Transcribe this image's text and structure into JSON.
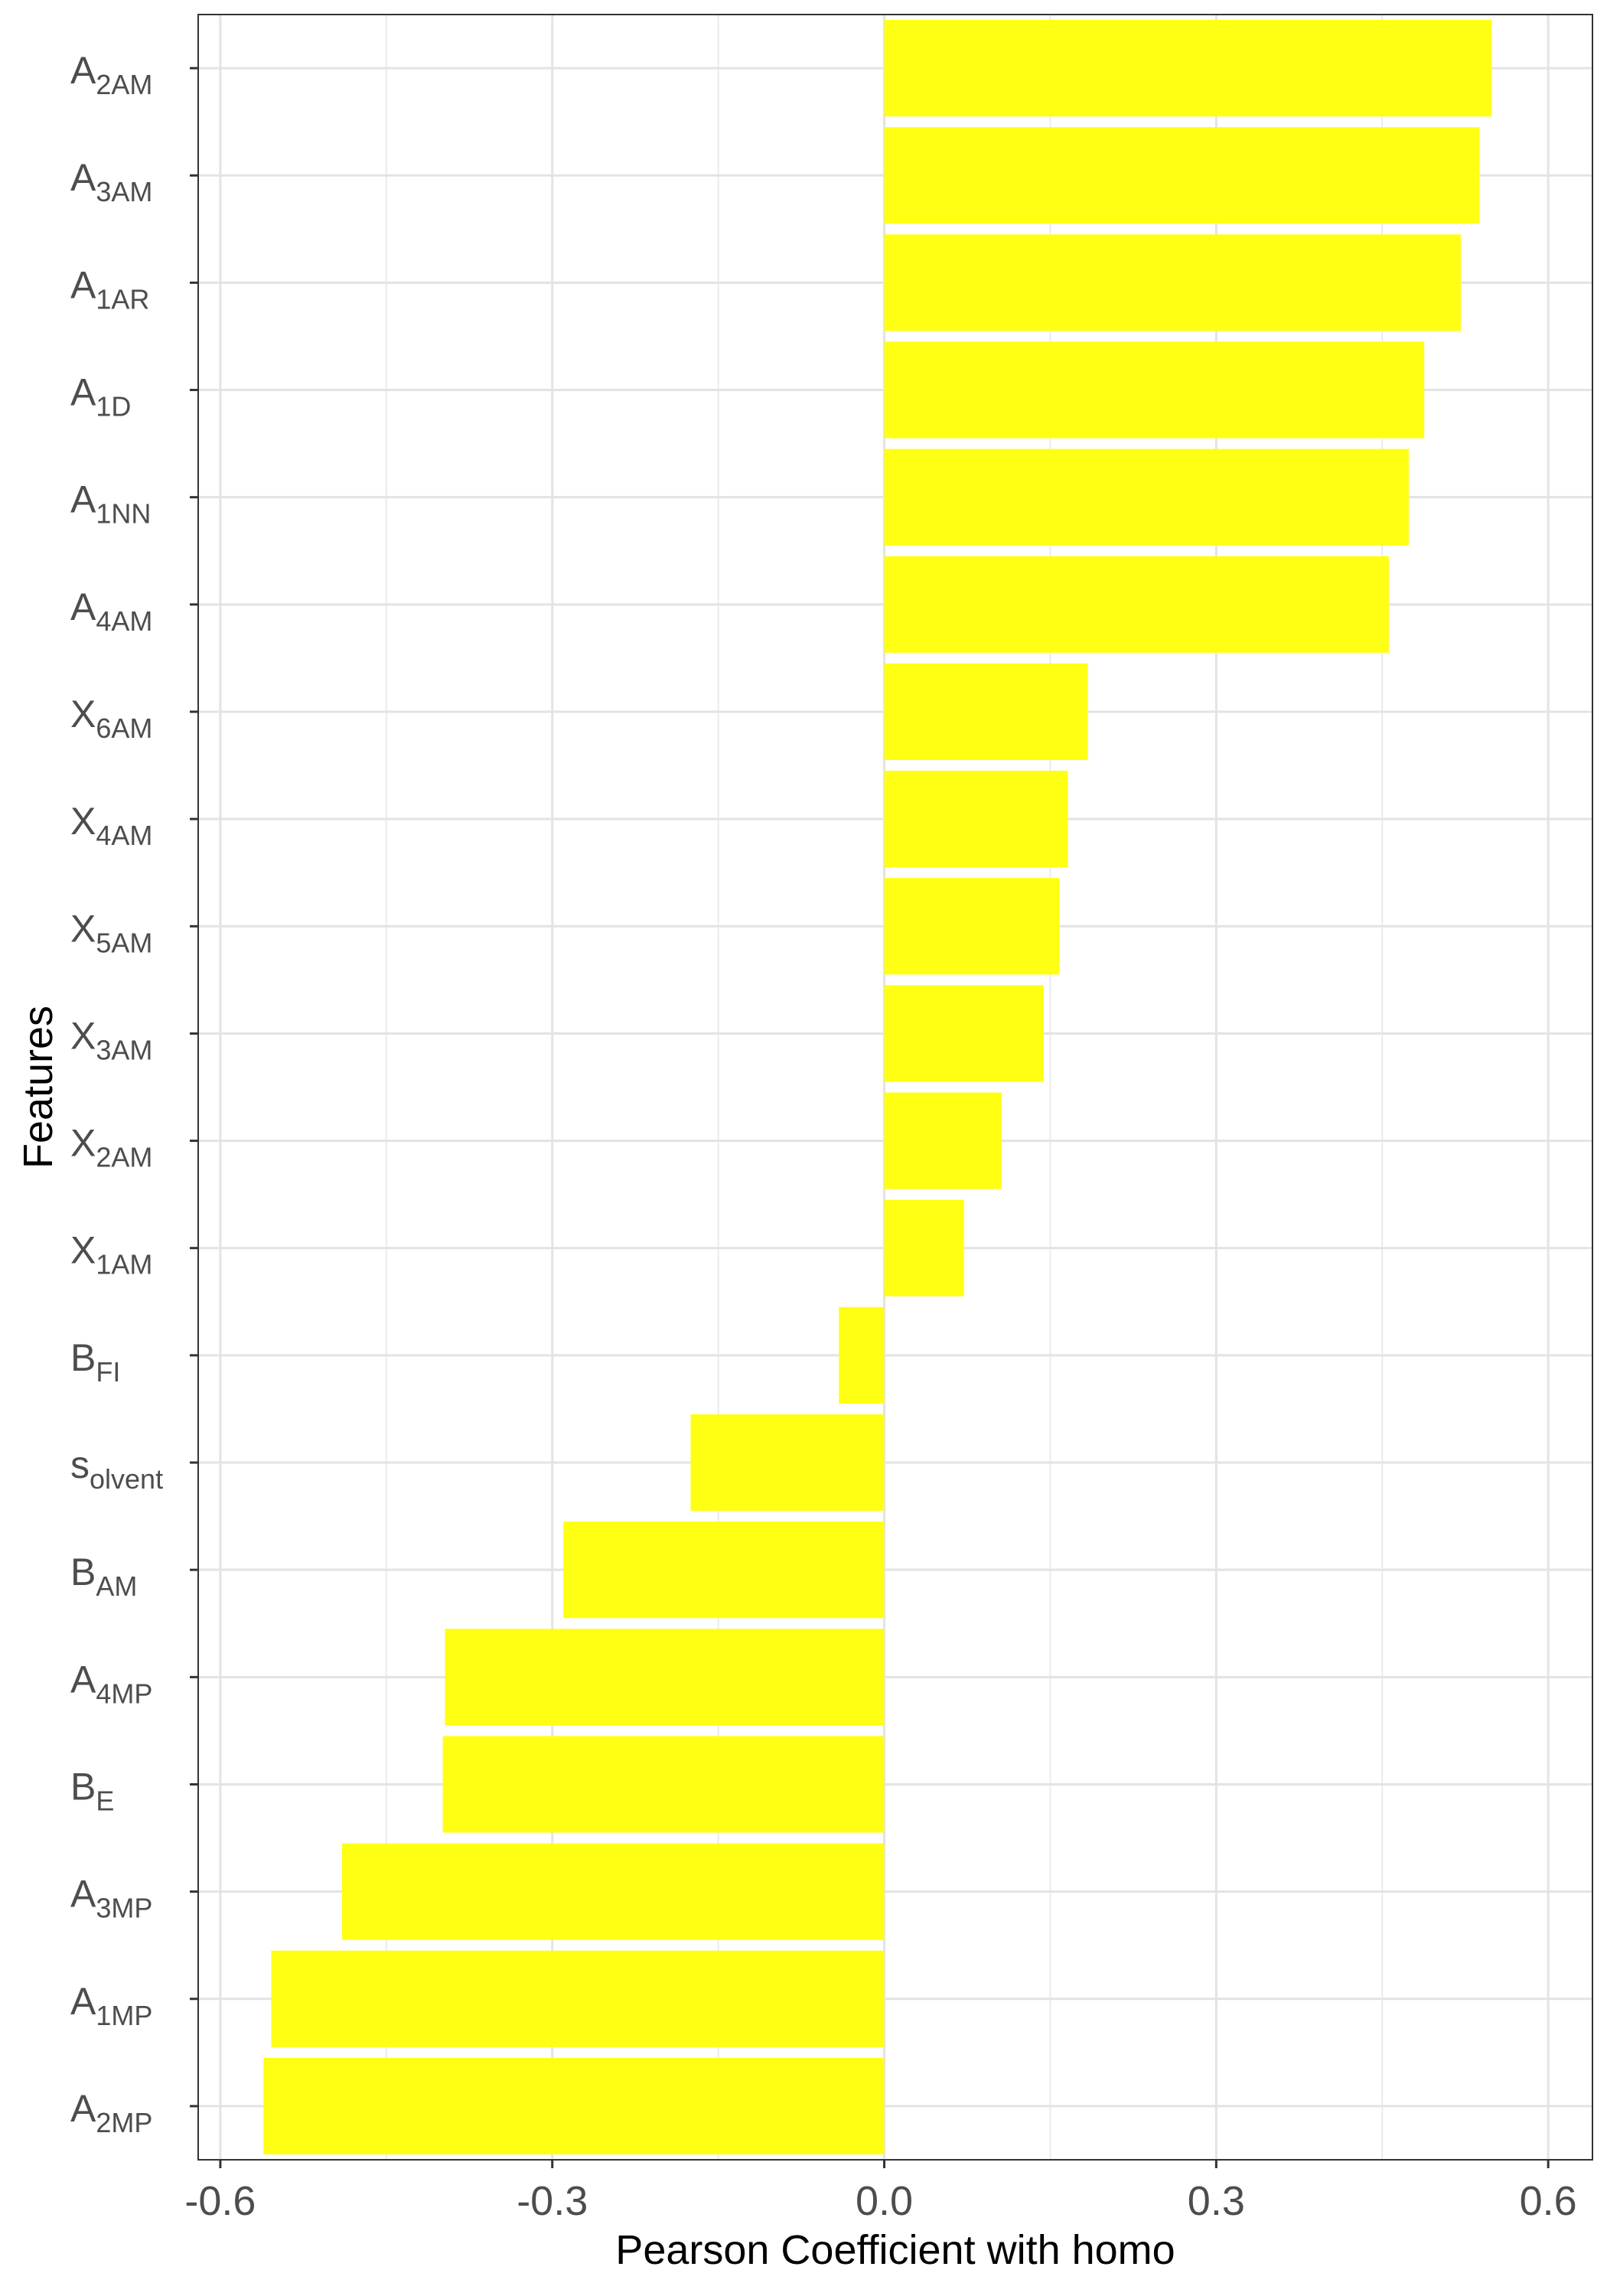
{
  "chart_data": {
    "type": "bar",
    "orientation": "horizontal",
    "title": "",
    "xlabel": "Pearson Coefficient with homo",
    "ylabel": "Features",
    "xlim": [
      -0.62,
      0.64
    ],
    "x_ticks": [
      -0.6,
      -0.3,
      0.0,
      0.3,
      0.6
    ],
    "x_tick_labels": [
      "-0.6",
      "-0.3",
      "0.0",
      "0.3",
      "0.6"
    ],
    "grid": true,
    "legend": "none",
    "bar_color": "#FFFF14",
    "categories": [
      {
        "base": "A",
        "sub": "2AM"
      },
      {
        "base": "A",
        "sub": "3AM"
      },
      {
        "base": "A",
        "sub": "1AR"
      },
      {
        "base": "A",
        "sub": "1D"
      },
      {
        "base": "A",
        "sub": "1NN"
      },
      {
        "base": "A",
        "sub": "4AM"
      },
      {
        "base": "X",
        "sub": "6AM"
      },
      {
        "base": "X",
        "sub": "4AM"
      },
      {
        "base": "X",
        "sub": "5AM"
      },
      {
        "base": "X",
        "sub": "3AM"
      },
      {
        "base": "X",
        "sub": "2AM"
      },
      {
        "base": "X",
        "sub": "1AM"
      },
      {
        "base": "B",
        "sub": "FI"
      },
      {
        "base": "s",
        "sub": "olvent"
      },
      {
        "base": "B",
        "sub": "AM"
      },
      {
        "base": "A",
        "sub": "4MP"
      },
      {
        "base": "B",
        "sub": "E"
      },
      {
        "base": "A",
        "sub": "3MP"
      },
      {
        "base": "A",
        "sub": "1MP"
      },
      {
        "base": "A",
        "sub": "2MP"
      }
    ],
    "values": [
      0.549,
      0.538,
      0.521,
      0.488,
      0.474,
      0.456,
      0.184,
      0.166,
      0.158,
      0.144,
      0.106,
      0.072,
      -0.041,
      -0.175,
      -0.29,
      -0.397,
      -0.399,
      -0.49,
      -0.554,
      -0.561
    ]
  }
}
